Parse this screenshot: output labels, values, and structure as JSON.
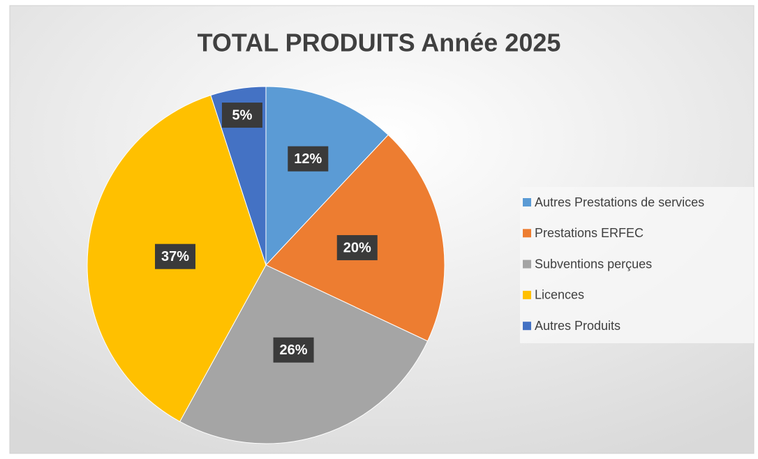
{
  "chart_data": {
    "type": "pie",
    "title": "TOTAL PRODUITS Année 2025",
    "categories": [
      "Autres Prestations de services",
      "Prestations ERFEC",
      "Subventions perçues",
      "Licences",
      "Autres Produits"
    ],
    "values": [
      12,
      20,
      26,
      37,
      5
    ],
    "value_labels": [
      "12%",
      "20%",
      "26%",
      "37%",
      "5%"
    ],
    "colors": [
      "#5b9bd5",
      "#ed7d31",
      "#a5a5a5",
      "#ffc000",
      "#4472c4"
    ],
    "legend": "right"
  }
}
